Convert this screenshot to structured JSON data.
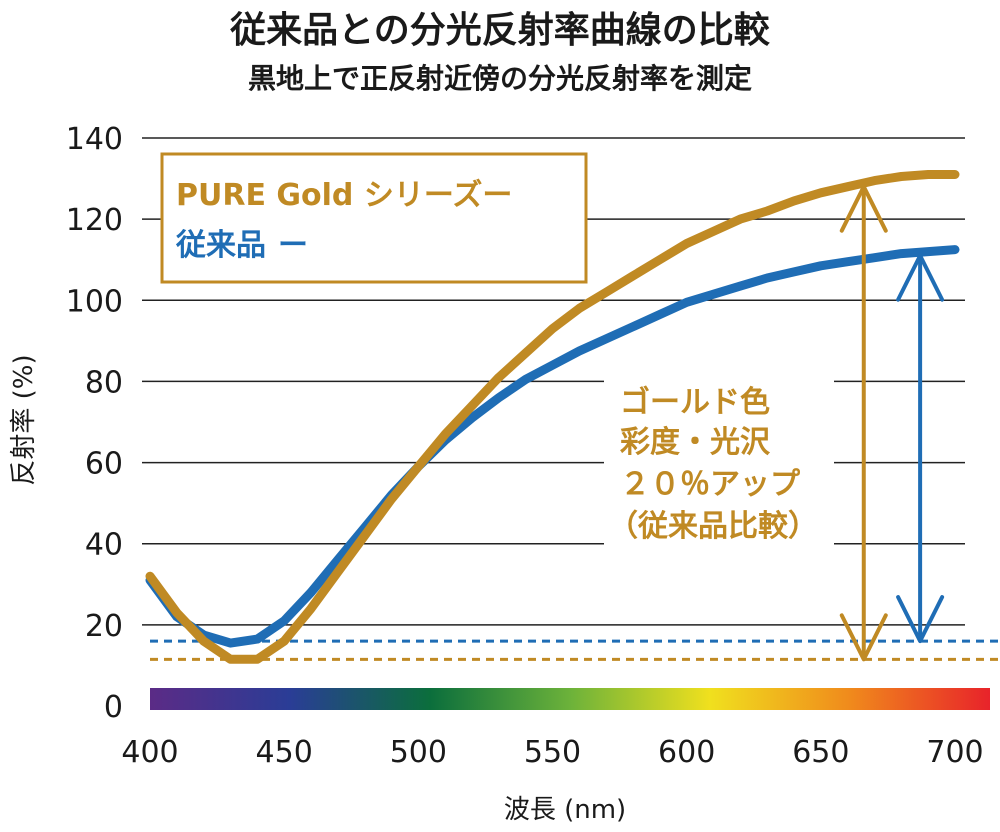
{
  "chart_data": {
    "type": "line",
    "title": "従来品との分光反射率曲線の比較",
    "subtitle": "黒地上で正反射近傍の分光反射率を測定",
    "xlabel": "波長 (nm)",
    "ylabel": "反射率 (%)",
    "xlim": [
      400,
      700
    ],
    "ylim": [
      0,
      140
    ],
    "x_ticks": [
      "400",
      "450",
      "500",
      "550",
      "600",
      "650",
      "700"
    ],
    "y_ticks": [
      "0",
      "20",
      "40",
      "60",
      "80",
      "100",
      "120",
      "140"
    ],
    "grid": "horizontal",
    "legend_position": "top-left",
    "series": [
      {
        "name": "PURE Gold シリーズ",
        "legend_suffix": "ー",
        "color": "#c08a24",
        "x": [
          400,
          410,
          420,
          430,
          440,
          450,
          460,
          470,
          480,
          490,
          500,
          510,
          520,
          530,
          540,
          550,
          560,
          570,
          580,
          590,
          600,
          610,
          620,
          630,
          640,
          650,
          660,
          670,
          680,
          690,
          700
        ],
        "y": [
          32,
          23,
          16,
          11.5,
          11.5,
          16,
          24,
          33,
          42,
          51,
          59,
          67,
          74,
          81,
          87,
          93,
          98,
          102,
          106,
          110,
          114,
          117,
          120,
          122,
          124.5,
          126.5,
          128,
          129.5,
          130.5,
          131,
          131
        ]
      },
      {
        "name": "従来品",
        "legend_suffix": "ー",
        "color": "#1f6db5",
        "x": [
          400,
          410,
          420,
          430,
          440,
          450,
          460,
          470,
          480,
          490,
          500,
          510,
          520,
          530,
          540,
          550,
          560,
          570,
          580,
          590,
          600,
          610,
          620,
          630,
          640,
          650,
          660,
          670,
          680,
          690,
          700
        ],
        "y": [
          31,
          22,
          17.5,
          15.5,
          16.5,
          21,
          28,
          36,
          44,
          52,
          59,
          65.5,
          71,
          76,
          80.5,
          84,
          87.5,
          90.5,
          93.5,
          96.5,
          99.5,
          101.5,
          103.5,
          105.5,
          107,
          108.5,
          109.5,
          110.5,
          111.5,
          112,
          112.5
        ]
      }
    ],
    "baselines": [
      {
        "value": 16,
        "color": "#1f6db5"
      },
      {
        "value": 11.5,
        "color": "#c08a24"
      }
    ],
    "arrows": [
      {
        "x": 666,
        "from": 11.5,
        "to": 128,
        "color": "#c08a24"
      },
      {
        "x": 687,
        "from": 16,
        "to": 111,
        "color": "#1f6db5"
      }
    ],
    "annotation": [
      "ゴールド色",
      "彩度・光沢",
      "２０％アップ",
      "（従来品比較）"
    ],
    "spectrum_bar": [
      "#5b2b86",
      "#2a3d96",
      "#0b6e3c",
      "#6cb23a",
      "#f0e01e",
      "#f08a1c",
      "#e8232a"
    ]
  }
}
